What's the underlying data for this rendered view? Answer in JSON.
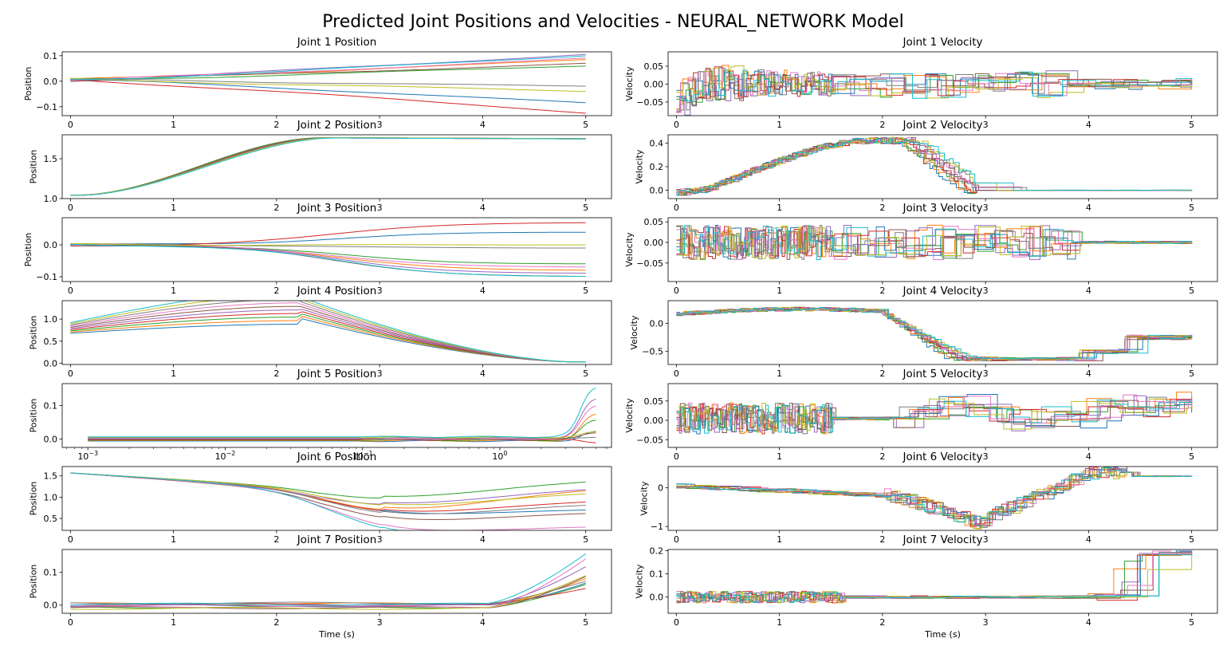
{
  "figure": {
    "title": "Predicted Joint Positions and Velocities - NEURAL_NETWORK Model",
    "colors": [
      "#1f77b4",
      "#ff7f0e",
      "#2ca02c",
      "#d62728",
      "#9467bd",
      "#8c564b",
      "#e377c2",
      "#7f7f7f",
      "#bcbd22",
      "#17becf"
    ]
  },
  "chart_data": [
    {
      "type": "line",
      "title": "Joint 1 Position",
      "ylabel": "Position",
      "xlabel": "",
      "xlim": [
        -0.08,
        5.25
      ],
      "ylim": [
        -0.135,
        0.115
      ],
      "xticks": [
        "0",
        "1",
        "2",
        "3",
        "4",
        "5"
      ],
      "yticks": [
        "0.1",
        "0.0",
        "-0.1"
      ],
      "legend": false,
      "grid": false,
      "series_count": 10,
      "final_values": [
        -0.085,
        0.085,
        0.06,
        -0.125,
        0.105,
        0.07,
        0.09,
        -0.02,
        -0.04,
        0.1
      ]
    },
    {
      "type": "line",
      "title": "Joint 1 Velocity",
      "ylabel": "Velocity",
      "xlabel": "",
      "xlim": [
        -0.08,
        5.25
      ],
      "ylim": [
        -0.088,
        0.09
      ],
      "xticks": [
        "0",
        "1",
        "2",
        "3",
        "4",
        "5"
      ],
      "yticks": [
        "0.05",
        "0.00",
        "-0.05"
      ],
      "legend": false,
      "grid": false,
      "series_count": 10,
      "style": "step"
    },
    {
      "type": "line",
      "title": "Joint 2 Position",
      "ylabel": "Position",
      "xlabel": "",
      "xlim": [
        -0.08,
        5.25
      ],
      "ylim": [
        1.0,
        1.8
      ],
      "xticks": [
        "0",
        "1",
        "2",
        "3",
        "4",
        "5"
      ],
      "yticks": [
        "1.5",
        "1.0"
      ],
      "legend": false,
      "grid": false,
      "series_count": 10,
      "start_value": 1.04,
      "final_value": 1.76
    },
    {
      "type": "line",
      "title": "Joint 2 Velocity",
      "ylabel": "Velocity",
      "xlabel": "",
      "xlim": [
        -0.08,
        5.25
      ],
      "ylim": [
        -0.07,
        0.47
      ],
      "xticks": [
        "0",
        "1",
        "2",
        "3",
        "4",
        "5"
      ],
      "yticks": [
        "0.4",
        "0.2",
        "0.0"
      ],
      "legend": false,
      "grid": false,
      "series_count": 10,
      "style": "step"
    },
    {
      "type": "line",
      "title": "Joint 3 Position",
      "ylabel": "Position",
      "xlabel": "",
      "xlim": [
        -0.08,
        5.25
      ],
      "ylim": [
        -0.115,
        0.085
      ],
      "xticks": [
        "0",
        "1",
        "2",
        "3",
        "4",
        "5"
      ],
      "yticks": [
        "0.0",
        "-0.1"
      ],
      "legend": false,
      "grid": false,
      "series_count": 10,
      "final_values": [
        0.04,
        -0.08,
        -0.06,
        0.07,
        -0.09,
        -0.1,
        -0.07,
        -0.01,
        0.0,
        -0.1
      ]
    },
    {
      "type": "line",
      "title": "Joint 3 Velocity",
      "ylabel": "Velocity",
      "xlabel": "",
      "xlim": [
        -0.08,
        5.25
      ],
      "ylim": [
        -0.095,
        0.06
      ],
      "xticks": [
        "0",
        "1",
        "2",
        "3",
        "4",
        "5"
      ],
      "yticks": [
        "0.05",
        "0.00",
        "-0.05"
      ],
      "legend": false,
      "grid": false,
      "series_count": 10,
      "style": "step"
    },
    {
      "type": "line",
      "title": "Joint 4 Position",
      "ylabel": "Position",
      "xlabel": "",
      "xlim": [
        -0.08,
        5.25
      ],
      "ylim": [
        -0.03,
        1.42
      ],
      "xticks": [
        "0",
        "1",
        "2",
        "3",
        "4",
        "5"
      ],
      "yticks": [
        "1.0",
        "0.5",
        "0.0"
      ],
      "legend": false,
      "grid": false,
      "series_count": 10,
      "start_value": 0.8,
      "peak_value": 1.25,
      "final_value": 0.03
    },
    {
      "type": "line",
      "title": "Joint 4 Velocity",
      "ylabel": "Velocity",
      "xlabel": "",
      "xlim": [
        -0.08,
        5.25
      ],
      "ylim": [
        -0.73,
        0.4
      ],
      "xticks": [
        "0",
        "1",
        "2",
        "3",
        "4",
        "5"
      ],
      "yticks": [
        "0.0",
        "-0.5"
      ],
      "legend": false,
      "grid": false,
      "series_count": 10,
      "style": "step"
    },
    {
      "type": "line",
      "title": "Joint 5 Position",
      "ylabel": "Position",
      "xlabel": "",
      "xscale": "log",
      "xlim": [
        0.00065,
        6.5
      ],
      "ylim": [
        -0.025,
        0.165
      ],
      "xticks": [
        "10^-3",
        "10^-2",
        "10^-1",
        "10^0"
      ],
      "yticks": [
        "0.1",
        "0.0"
      ],
      "legend": false,
      "grid": false,
      "series_count": 10
    },
    {
      "type": "line",
      "title": "Joint 5 Velocity",
      "ylabel": "Velocity",
      "xlabel": "",
      "xlim": [
        -0.08,
        5.25
      ],
      "ylim": [
        -0.07,
        0.095
      ],
      "xticks": [
        "0",
        "1",
        "2",
        "3",
        "4",
        "5"
      ],
      "yticks": [
        "0.05",
        "0.00",
        "-0.05"
      ],
      "legend": false,
      "grid": false,
      "series_count": 10,
      "style": "step"
    },
    {
      "type": "line",
      "title": "Joint 6 Position",
      "ylabel": "Position",
      "xlabel": "",
      "xlim": [
        -0.08,
        5.25
      ],
      "ylim": [
        0.22,
        1.72
      ],
      "xticks": [
        "0",
        "1",
        "2",
        "3",
        "4",
        "5"
      ],
      "yticks": [
        "1.5",
        "1.0",
        "0.5"
      ],
      "legend": false,
      "grid": false,
      "series_count": 10,
      "start_value": 1.57
    },
    {
      "type": "line",
      "title": "Joint 6 Velocity",
      "ylabel": "Velocity",
      "xlabel": "",
      "xlim": [
        -0.08,
        5.25
      ],
      "ylim": [
        -1.1,
        0.55
      ],
      "xticks": [
        "0",
        "1",
        "2",
        "3",
        "4",
        "5"
      ],
      "yticks": [
        "0",
        "-1"
      ],
      "legend": false,
      "grid": false,
      "series_count": 10,
      "style": "step"
    },
    {
      "type": "line",
      "title": "Joint 7 Position",
      "ylabel": "Position",
      "xlabel": "Time (s)",
      "xlim": [
        -0.08,
        5.25
      ],
      "ylim": [
        -0.025,
        0.17
      ],
      "xticks": [
        "0",
        "1",
        "2",
        "3",
        "4",
        "5"
      ],
      "yticks": [
        "0.1",
        "0.0"
      ],
      "legend": false,
      "grid": false,
      "series_count": 10
    },
    {
      "type": "line",
      "title": "Joint 7 Velocity",
      "ylabel": "Velocity",
      "xlabel": "Time (s)",
      "xlim": [
        -0.08,
        5.25
      ],
      "ylim": [
        -0.07,
        0.205
      ],
      "xticks": [
        "0",
        "1",
        "2",
        "3",
        "4",
        "5"
      ],
      "yticks": [
        "0.2",
        "0.1",
        "0.0"
      ],
      "legend": false,
      "grid": false,
      "series_count": 10,
      "style": "step"
    }
  ]
}
